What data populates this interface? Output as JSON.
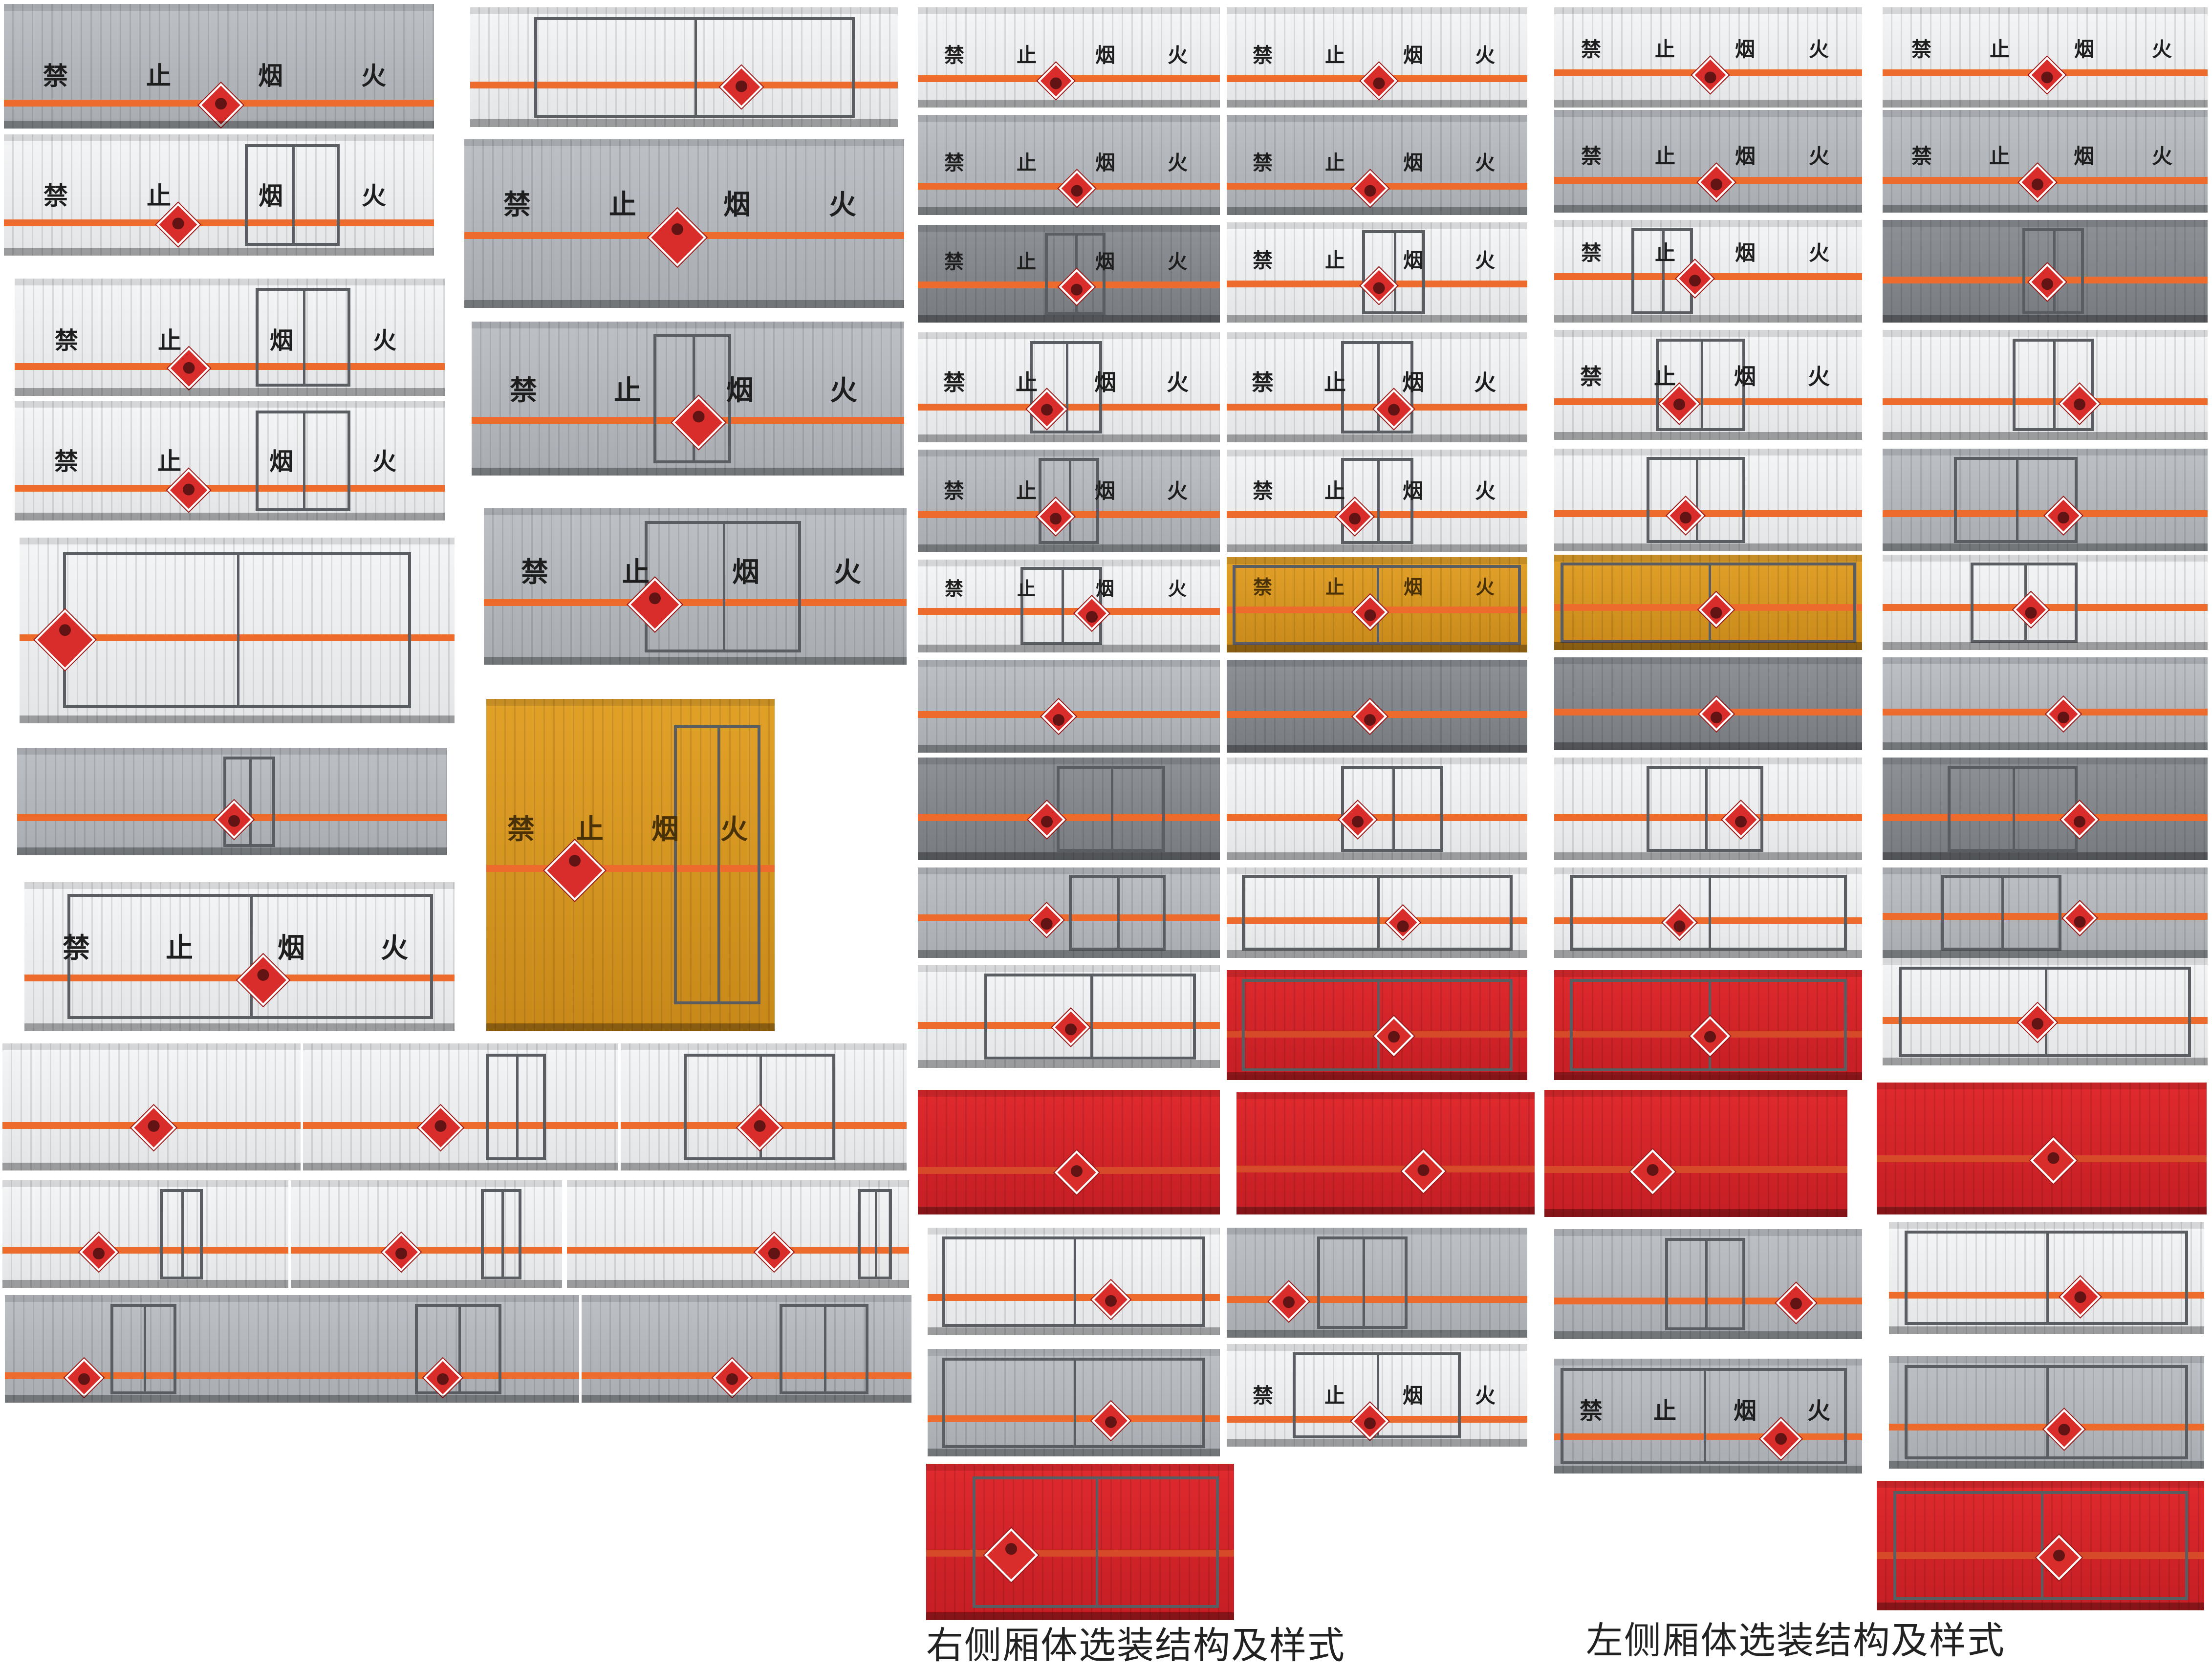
{
  "warning_text": [
    "禁",
    "止",
    "烟",
    "火"
  ],
  "captions": {
    "right_side": "右侧厢体选装结构及样式",
    "left_side": "左侧厢体选装结构及样式"
  },
  "colors": {
    "stripe": "#ee6b2e",
    "placard": "#d82d2a",
    "panel_grey": "#b3b7bc",
    "panel_white": "#eceeef",
    "panel_red": "#d2262b",
    "panel_yellow": "#d59625"
  }
}
